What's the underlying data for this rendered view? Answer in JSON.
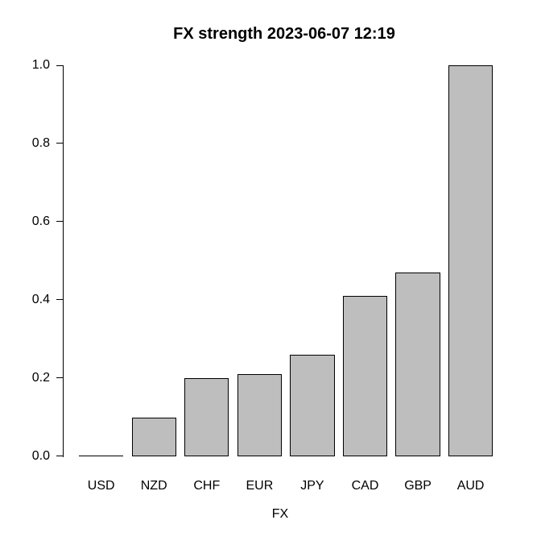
{
  "chart_data": {
    "type": "bar",
    "title": "FX strength 2023-06-07 12:19",
    "xlabel": "FX",
    "ylabel": "",
    "categories": [
      "USD",
      "NZD",
      "CHF",
      "EUR",
      "JPY",
      "CAD",
      "GBP",
      "AUD"
    ],
    "values": [
      0.0,
      0.1,
      0.2,
      0.21,
      0.26,
      0.41,
      0.47,
      1.0
    ],
    "ylim": [
      0.0,
      1.0
    ],
    "yticks": [
      0.0,
      0.2,
      0.4,
      0.6,
      0.8,
      1.0
    ],
    "ytick_labels": [
      "0.0",
      "0.2",
      "0.4",
      "0.6",
      "0.8",
      "1.0"
    ],
    "grid": false,
    "legend": null,
    "colors": {
      "bar_fill": "#bebebe",
      "bar_border": "#000000",
      "axis": "#000000",
      "text": "#000000",
      "background": "#ffffff"
    }
  }
}
